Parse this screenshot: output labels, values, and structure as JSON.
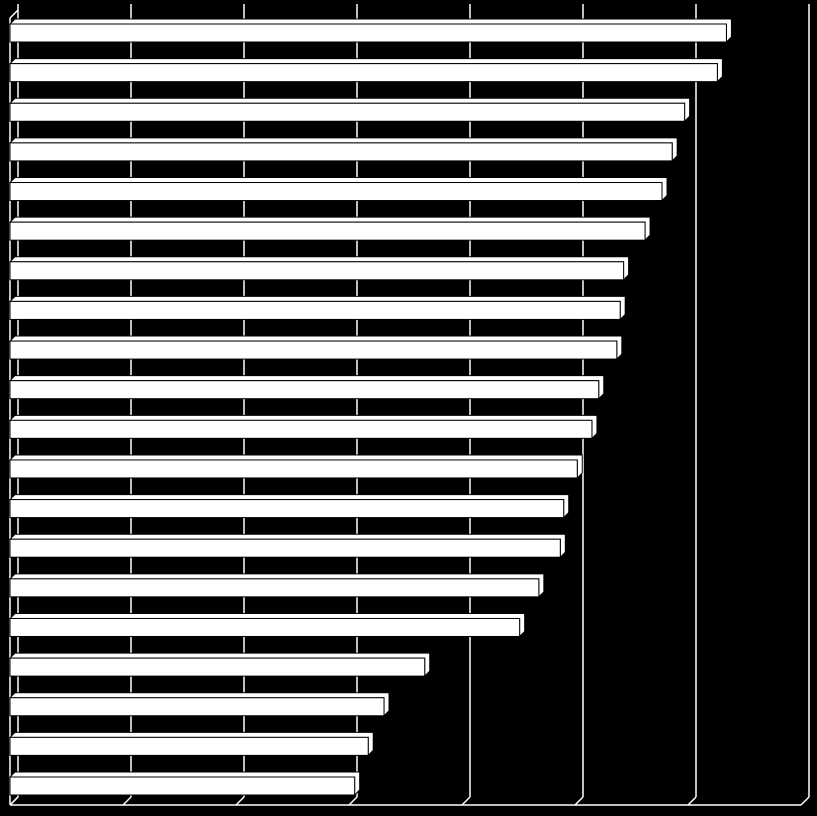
{
  "chart_data": {
    "type": "bar",
    "orientation": "horizontal",
    "categories": [
      null,
      null,
      null,
      null,
      null,
      null,
      null,
      null,
      null,
      null,
      null,
      null,
      null,
      null,
      null,
      null,
      null,
      null,
      null,
      null
    ],
    "values": [
      6.34,
      6.26,
      5.97,
      5.86,
      5.77,
      5.62,
      5.43,
      5.4,
      5.37,
      5.21,
      5.15,
      5.02,
      4.9,
      4.87,
      4.68,
      4.51,
      3.67,
      3.31,
      3.17,
      3.05
    ],
    "color": "#ffffff",
    "background": "#000000",
    "xlim": [
      0,
      7
    ],
    "xticks": [
      0,
      1,
      2,
      3,
      4,
      5,
      6,
      7
    ],
    "grid": true
  }
}
